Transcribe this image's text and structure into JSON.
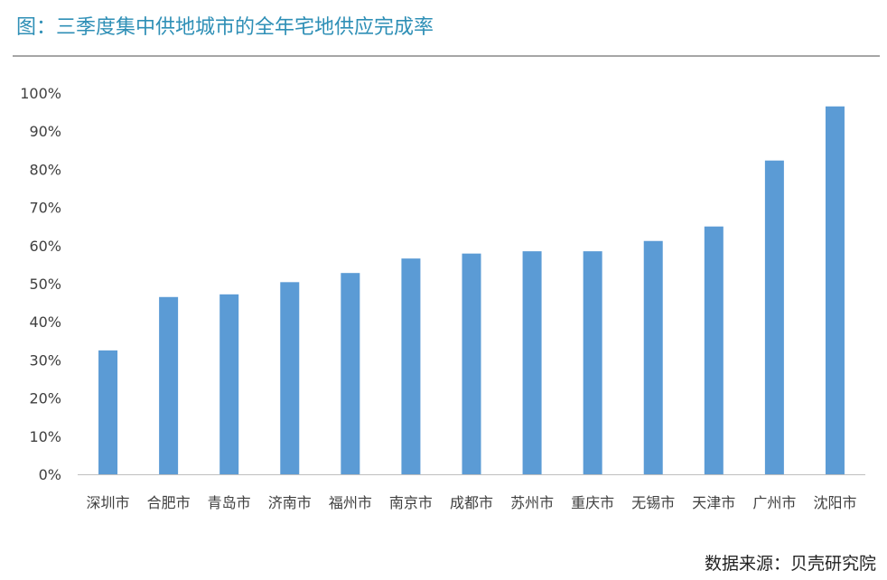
{
  "header": {
    "title": "图：三季度集中供地城市的全年宅地供应完成率"
  },
  "footer": {
    "source": "数据来源：贝壳研究院"
  },
  "colors": {
    "bar": "#5b9bd5",
    "axis": "#bfbfbf",
    "title": "#2e8fb6"
  },
  "chart_data": {
    "type": "bar",
    "title": "",
    "xlabel": "",
    "ylabel": "",
    "categories": [
      "深圳市",
      "合肥市",
      "青岛市",
      "济南市",
      "福州市",
      "南京市",
      "成都市",
      "苏州市",
      "重庆市",
      "无锡市",
      "天津市",
      "广州市",
      "沈阳市"
    ],
    "values": [
      32.5,
      46.5,
      47.2,
      50.4,
      52.8,
      56.6,
      57.9,
      58.5,
      58.5,
      61.2,
      65.0,
      82.3,
      96.5
    ],
    "ylim": [
      0,
      100
    ],
    "yticks": [
      "0%",
      "10%",
      "20%",
      "30%",
      "40%",
      "50%",
      "60%",
      "70%",
      "80%",
      "90%",
      "100%"
    ],
    "unit": "%",
    "grid": false,
    "legend": "none"
  }
}
